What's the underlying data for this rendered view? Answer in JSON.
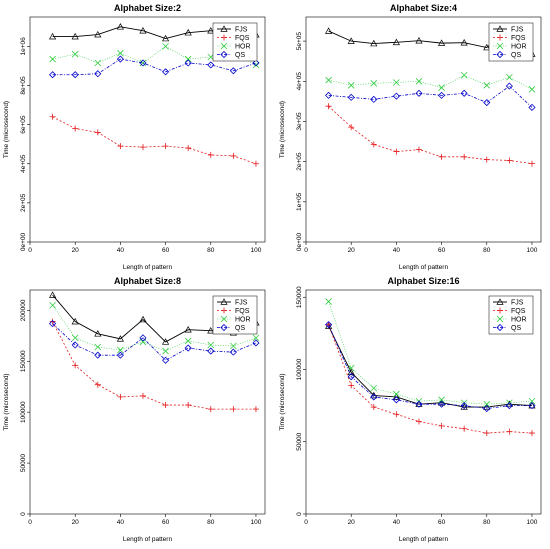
{
  "chart_data": [
    {
      "type": "line",
      "title": "Alphabet Size:2",
      "xlabel": "Length of pattern",
      "ylabel": "Time (microsecond)",
      "x": [
        10,
        20,
        30,
        40,
        50,
        60,
        70,
        80,
        90,
        100
      ],
      "xticks": [
        0,
        20,
        40,
        60,
        80,
        100
      ],
      "xlim": [
        0,
        104
      ],
      "ylim": [
        0,
        1150000
      ],
      "yticks": [
        0,
        200000,
        400000,
        600000,
        800000,
        1000000
      ],
      "ytick_labels": [
        "0e+00",
        "2e+05",
        "4e+05",
        "6e+05",
        "8e+05",
        "1e+06"
      ],
      "series": [
        {
          "name": "FJS",
          "color": "#000000",
          "values": [
            1050000,
            1050000,
            1060000,
            1100000,
            1080000,
            1040000,
            1070000,
            1080000,
            1050000,
            1060000
          ]
        },
        {
          "name": "FQS",
          "color": "#e41a1c",
          "values": [
            640000,
            580000,
            560000,
            490000,
            485000,
            490000,
            480000,
            445000,
            440000,
            400000
          ]
        },
        {
          "name": "HOR",
          "color": "#2ecc40",
          "values": [
            935000,
            960000,
            915000,
            965000,
            915000,
            1000000,
            935000,
            945000,
            965000,
            905000
          ]
        },
        {
          "name": "QS",
          "color": "#0000cc",
          "values": [
            855000,
            855000,
            860000,
            935000,
            915000,
            870000,
            915000,
            905000,
            875000,
            915000
          ]
        }
      ],
      "legend_position": "top-right"
    },
    {
      "type": "line",
      "title": "Alphabet Size:4",
      "xlabel": "Length of pattern",
      "ylabel": "Time (microsecond)",
      "x": [
        10,
        20,
        30,
        40,
        50,
        60,
        70,
        80,
        90,
        100
      ],
      "xticks": [
        0,
        20,
        40,
        60,
        80,
        100
      ],
      "xlim": [
        0,
        104
      ],
      "ylim": [
        0,
        560000
      ],
      "yticks": [
        0,
        100000,
        200000,
        300000,
        400000,
        500000
      ],
      "ytick_labels": [
        "0e+00",
        "1e+05",
        "2e+05",
        "3e+05",
        "4e+05",
        "5e+05"
      ],
      "series": [
        {
          "name": "FJS",
          "color": "#000000",
          "values": [
            525000,
            500000,
            494000,
            497000,
            501000,
            495000,
            496000,
            484000,
            530000,
            468000
          ]
        },
        {
          "name": "FQS",
          "color": "#e41a1c",
          "values": [
            338000,
            286000,
            243000,
            225000,
            230000,
            212000,
            212000,
            205000,
            203000,
            195000
          ]
        },
        {
          "name": "HOR",
          "color": "#2ecc40",
          "values": [
            403000,
            390000,
            395000,
            397000,
            400000,
            384000,
            415000,
            390000,
            410000,
            380000
          ]
        },
        {
          "name": "QS",
          "color": "#0000cc",
          "values": [
            365000,
            360000,
            355000,
            363000,
            370000,
            365000,
            370000,
            347000,
            388000,
            335000
          ]
        }
      ],
      "legend_position": "top-right"
    },
    {
      "type": "line",
      "title": "Alphabet Size:8",
      "xlabel": "Length of pattern",
      "ylabel": "Time (microsecond)",
      "x": [
        10,
        20,
        30,
        40,
        50,
        60,
        70,
        80,
        90,
        100
      ],
      "xticks": [
        0,
        20,
        40,
        60,
        80,
        100
      ],
      "xlim": [
        0,
        104
      ],
      "ylim": [
        0,
        220000
      ],
      "yticks": [
        0,
        50000,
        100000,
        150000,
        200000
      ],
      "ytick_labels": [
        "0",
        "50000",
        "100000",
        "150000",
        "200000"
      ],
      "series": [
        {
          "name": "FJS",
          "color": "#000000",
          "values": [
            215000,
            189000,
            177000,
            172000,
            191000,
            169000,
            181000,
            180000,
            178000,
            188000
          ]
        },
        {
          "name": "FQS",
          "color": "#e41a1c",
          "values": [
            189000,
            146000,
            127000,
            115000,
            116000,
            107000,
            107000,
            103000,
            103000,
            103000
          ]
        },
        {
          "name": "HOR",
          "color": "#2ecc40",
          "values": [
            205000,
            173000,
            164000,
            161000,
            169000,
            160000,
            170000,
            166000,
            165000,
            173000
          ]
        },
        {
          "name": "QS",
          "color": "#0000cc",
          "values": [
            187000,
            166000,
            156000,
            156000,
            173000,
            151000,
            163000,
            160000,
            159000,
            168000
          ]
        }
      ],
      "legend_position": "top-right"
    },
    {
      "type": "line",
      "title": "Alphabet Size:16",
      "xlabel": "Length of pattern",
      "ylabel": "Time (microsecond)",
      "x": [
        10,
        20,
        30,
        40,
        50,
        60,
        70,
        80,
        90,
        100
      ],
      "xticks": [
        0,
        20,
        40,
        60,
        80,
        100
      ],
      "xlim": [
        0,
        104
      ],
      "ylim": [
        0,
        155000
      ],
      "yticks": [
        0,
        50000,
        100000,
        150000
      ],
      "ytick_labels": [
        "0",
        "50000",
        "100000",
        "150000"
      ],
      "series": [
        {
          "name": "FJS",
          "color": "#000000",
          "values": [
            130000,
            98000,
            82000,
            81000,
            76000,
            77000,
            74000,
            74000,
            76000,
            75000
          ]
        },
        {
          "name": "FQS",
          "color": "#e41a1c",
          "values": [
            131000,
            89000,
            74000,
            69000,
            64000,
            61000,
            59000,
            56000,
            57000,
            56000
          ]
        },
        {
          "name": "HOR",
          "color": "#2ecc40",
          "values": [
            147000,
            101000,
            87000,
            83000,
            78000,
            79000,
            77000,
            76000,
            77000,
            78000
          ]
        },
        {
          "name": "QS",
          "color": "#0000cc",
          "values": [
            131000,
            95000,
            81000,
            79000,
            76000,
            76000,
            75000,
            73000,
            75000,
            75000
          ]
        }
      ],
      "legend_position": "top-right"
    }
  ]
}
